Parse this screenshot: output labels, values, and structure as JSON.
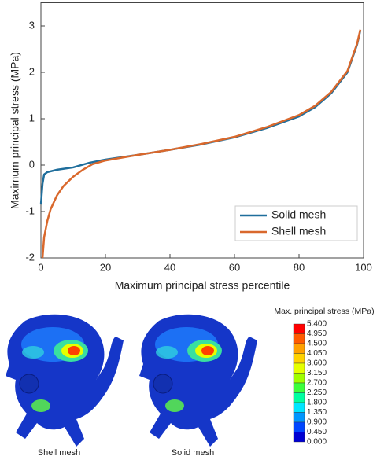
{
  "chart_data": {
    "type": "line",
    "xlabel": "Maximum principal stress percentile",
    "ylabel": "Maximum principal stress (MPa)",
    "xlim": [
      0,
      100
    ],
    "xticks": [
      0,
      20,
      40,
      60,
      80,
      100
    ],
    "ylim": [
      -2,
      3.5
    ],
    "yticks": [
      -2,
      -1,
      0,
      1,
      2,
      3
    ],
    "legend": "lower right",
    "series": [
      {
        "name": "Solid mesh",
        "color": "#1f6e9c",
        "x": [
          0,
          0.5,
          1,
          2,
          5,
          10,
          15,
          20,
          30,
          40,
          50,
          60,
          70,
          80,
          85,
          90,
          95,
          98,
          99
        ],
        "values": [
          -0.85,
          -0.4,
          -0.2,
          -0.15,
          -0.1,
          -0.05,
          0.05,
          0.12,
          0.22,
          0.33,
          0.45,
          0.6,
          0.8,
          1.05,
          1.25,
          1.55,
          2.0,
          2.6,
          2.9
        ]
      },
      {
        "name": "Shell mesh",
        "color": "#d9682c",
        "x": [
          0.5,
          1,
          2,
          3,
          5,
          7,
          10,
          13,
          16,
          20,
          30,
          40,
          50,
          60,
          70,
          80,
          85,
          90,
          95,
          98,
          99
        ],
        "values": [
          -2.0,
          -1.55,
          -1.2,
          -0.95,
          -0.65,
          -0.45,
          -0.25,
          -0.1,
          0.02,
          0.1,
          0.22,
          0.33,
          0.46,
          0.61,
          0.82,
          1.08,
          1.28,
          1.58,
          2.03,
          2.62,
          2.92
        ]
      }
    ]
  },
  "contour": {
    "title": "Max. principal stress (MPa)",
    "labels": [
      "5.400",
      "4.950",
      "4.500",
      "4.050",
      "3.600",
      "3.150",
      "2.700",
      "2.250",
      "1.800",
      "1.350",
      "0.900",
      "0.450",
      "0.000"
    ],
    "colors": [
      "#ff0000",
      "#ff5a00",
      "#ffa000",
      "#ffd200",
      "#e6ff00",
      "#a0ff00",
      "#3cff3c",
      "#00ffa0",
      "#00e6ff",
      "#0096ff",
      "#0046ff",
      "#0000d2"
    ],
    "captions": [
      "Shell mesh",
      "Solid mesh"
    ]
  }
}
